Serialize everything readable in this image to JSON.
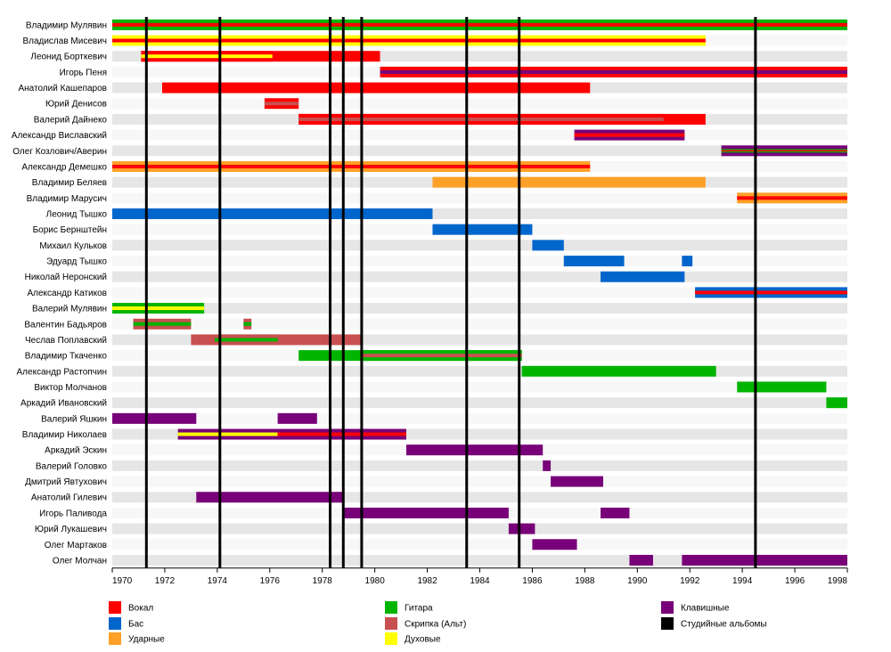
{
  "chart_data": {
    "type": "timeline",
    "x_range": [
      1970,
      1998
    ],
    "x_ticks": [
      "1970",
      "1972",
      "1974",
      "1976",
      "1978",
      "1980",
      "1982",
      "1984",
      "1986",
      "1988",
      "1990",
      "1992",
      "1994",
      "1996",
      "1998"
    ],
    "colors": {
      "vocal": "#ff0000",
      "bass": "#0066cc",
      "drums": "#ffa028",
      "guitar": "#00b400",
      "viola": "#c85050",
      "winds": "#ffff00",
      "keys": "#780078",
      "albums": "#000000"
    },
    "legend": [
      {
        "key": "vocal",
        "label": "Вокал"
      },
      {
        "key": "bass",
        "label": "Бас"
      },
      {
        "key": "drums",
        "label": "Ударные"
      },
      {
        "key": "guitar",
        "label": "Гитара"
      },
      {
        "key": "viola",
        "label": "Скрипка (Альт)"
      },
      {
        "key": "winds",
        "label": "Духовые"
      },
      {
        "key": "keys",
        "label": "Клавишные"
      },
      {
        "key": "albums",
        "label": "Студийные альбомы"
      }
    ],
    "album_years": [
      1971.3,
      1974.1,
      1978.3,
      1978.8,
      1979.5,
      1983.5,
      1985.5,
      1994.5
    ],
    "members": [
      {
        "name": "Владимир Мулявин",
        "bars": [
          {
            "start": 1970,
            "end": 1998,
            "role": "guitar",
            "inner": "vocal"
          }
        ]
      },
      {
        "name": "Владислав Мисевич",
        "bars": [
          {
            "start": 1970,
            "end": 1992.6,
            "role": "winds",
            "inner": "vocal"
          }
        ]
      },
      {
        "name": "Леонид Борткевич",
        "bars": [
          {
            "start": 1971.1,
            "end": 1980.2,
            "role": "vocal"
          },
          {
            "start": 1971.1,
            "end": 1976.1,
            "role": "vocal",
            "inner": "winds"
          }
        ]
      },
      {
        "name": "Игорь Пеня",
        "bars": [
          {
            "start": 1980.2,
            "end": 1998,
            "role": "vocal",
            "inner": "keys"
          }
        ]
      },
      {
        "name": "Анатолий Кашепаров",
        "bars": [
          {
            "start": 1971.9,
            "end": 1988.2,
            "role": "vocal"
          }
        ]
      },
      {
        "name": "Юрий Денисов",
        "bars": [
          {
            "start": 1975.8,
            "end": 1977.1,
            "role": "vocal",
            "inner": "viola"
          }
        ]
      },
      {
        "name": "Валерий Дайнеко",
        "bars": [
          {
            "start": 1977.1,
            "end": 1992.6,
            "role": "vocal"
          },
          {
            "start": 1977.1,
            "end": 1991.0,
            "role": "vocal",
            "inner": "viola"
          }
        ]
      },
      {
        "name": "Александр Виславский",
        "bars": [
          {
            "start": 1987.6,
            "end": 1991.8,
            "role": "keys",
            "inner": "vocal"
          }
        ]
      },
      {
        "name": "Олег Козлович/Аверин",
        "bars": [
          {
            "start": 1993.2,
            "end": 1998,
            "role": "keys",
            "inner": "guitar",
            "inner2": "vocal"
          }
        ]
      },
      {
        "name": "Александр Демешко",
        "bars": [
          {
            "start": 1970,
            "end": 1988.2,
            "role": "drums",
            "inner": "vocal"
          }
        ]
      },
      {
        "name": "Владимир Беляев",
        "bars": [
          {
            "start": 1982.2,
            "end": 1992.6,
            "role": "drums"
          }
        ]
      },
      {
        "name": "Владимир Марусич",
        "bars": [
          {
            "start": 1993.8,
            "end": 1998,
            "role": "drums",
            "inner": "vocal"
          }
        ]
      },
      {
        "name": "Леонид Тышко",
        "bars": [
          {
            "start": 1970,
            "end": 1982.2,
            "role": "bass"
          }
        ]
      },
      {
        "name": "Борис Бернштейн",
        "bars": [
          {
            "start": 1982.2,
            "end": 1986.0,
            "role": "bass"
          }
        ]
      },
      {
        "name": "Михаил Кульков",
        "bars": [
          {
            "start": 1986.0,
            "end": 1987.2,
            "role": "bass"
          }
        ]
      },
      {
        "name": "Эдуард Тышко",
        "bars": [
          {
            "start": 1987.2,
            "end": 1989.5,
            "role": "bass"
          },
          {
            "start": 1991.7,
            "end": 1992.1,
            "role": "bass"
          }
        ]
      },
      {
        "name": "Николай Неронский",
        "bars": [
          {
            "start": 1988.6,
            "end": 1991.8,
            "role": "bass"
          }
        ]
      },
      {
        "name": "Александр Катиков",
        "bars": [
          {
            "start": 1992.2,
            "end": 1998,
            "role": "bass",
            "inner": "vocal"
          }
        ]
      },
      {
        "name": "Валерий Мулявин",
        "bars": [
          {
            "start": 1970,
            "end": 1973.5,
            "role": "guitar",
            "inner": "winds"
          }
        ]
      },
      {
        "name": "Валентин Бадьяров",
        "bars": [
          {
            "start": 1970.8,
            "end": 1973.0,
            "role": "viola",
            "inner": "guitar"
          },
          {
            "start": 1975.0,
            "end": 1975.3,
            "role": "viola",
            "inner": "guitar"
          }
        ]
      },
      {
        "name": "Чеслав Поплавский",
        "bars": [
          {
            "start": 1973.0,
            "end": 1979.5,
            "role": "viola"
          },
          {
            "start": 1973.9,
            "end": 1976.3,
            "role": "viola",
            "inner": "guitar"
          }
        ]
      },
      {
        "name": "Владимир Ткаченко",
        "bars": [
          {
            "start": 1977.1,
            "end": 1985.6,
            "role": "guitar"
          },
          {
            "start": 1979.5,
            "end": 1985.6,
            "role": "guitar",
            "inner": "viola"
          }
        ]
      },
      {
        "name": "Александр Растопчин",
        "bars": [
          {
            "start": 1985.6,
            "end": 1993.0,
            "role": "guitar"
          }
        ]
      },
      {
        "name": "Виктор Молчанов",
        "bars": [
          {
            "start": 1993.8,
            "end": 1997.2,
            "role": "guitar"
          }
        ]
      },
      {
        "name": "Аркадий Ивановский",
        "bars": [
          {
            "start": 1997.2,
            "end": 1998,
            "role": "guitar"
          }
        ]
      },
      {
        "name": "Валерий Яшкин",
        "bars": [
          {
            "start": 1970,
            "end": 1973.2,
            "role": "keys"
          },
          {
            "start": 1976.3,
            "end": 1977.8,
            "role": "keys"
          }
        ]
      },
      {
        "name": "Владимир Николаев",
        "bars": [
          {
            "start": 1972.5,
            "end": 1981.2,
            "role": "keys",
            "inner": "winds"
          },
          {
            "start": 1976.3,
            "end": 1981.2,
            "role": "keys",
            "inner": "vocal"
          }
        ]
      },
      {
        "name": "Аркадий Эскин",
        "bars": [
          {
            "start": 1981.2,
            "end": 1986.4,
            "role": "keys"
          }
        ]
      },
      {
        "name": "Валерий Головко",
        "bars": [
          {
            "start": 1986.4,
            "end": 1986.7,
            "role": "keys"
          }
        ]
      },
      {
        "name": "Дмитрий Явтухович",
        "bars": [
          {
            "start": 1986.7,
            "end": 1988.7,
            "role": "keys"
          }
        ]
      },
      {
        "name": "Анатолий Гилевич",
        "bars": [
          {
            "start": 1973.2,
            "end": 1978.8,
            "role": "keys"
          }
        ]
      },
      {
        "name": "Игорь Паливода",
        "bars": [
          {
            "start": 1978.8,
            "end": 1985.1,
            "role": "keys"
          },
          {
            "start": 1988.6,
            "end": 1989.7,
            "role": "keys"
          }
        ]
      },
      {
        "name": "Юрий Лукашевич",
        "bars": [
          {
            "start": 1985.1,
            "end": 1986.1,
            "role": "keys"
          }
        ]
      },
      {
        "name": "Олег Мартаков",
        "bars": [
          {
            "start": 1986.0,
            "end": 1987.7,
            "role": "keys"
          }
        ]
      },
      {
        "name": "Олег Молчан",
        "bars": [
          {
            "start": 1989.7,
            "end": 1990.6,
            "role": "keys"
          },
          {
            "start": 1991.7,
            "end": 1998,
            "role": "keys"
          }
        ]
      }
    ]
  }
}
